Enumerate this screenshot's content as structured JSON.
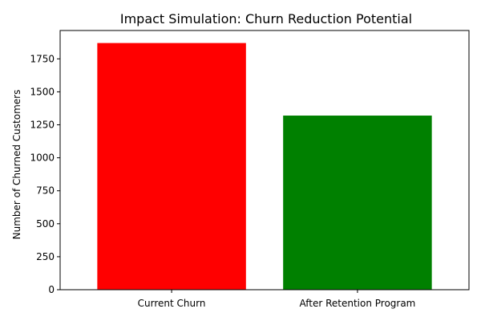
{
  "chart_data": {
    "type": "bar",
    "title": "Impact Simulation: Churn Reduction Potential",
    "xlabel": "",
    "ylabel": "Number of Churned Customers",
    "categories": [
      "Current Churn",
      "After Retention Program"
    ],
    "values": [
      1870,
      1320
    ],
    "colors": [
      "#ff0000",
      "#008000"
    ],
    "ylim": [
      0,
      1965
    ],
    "yticks": [
      0,
      250,
      500,
      750,
      1000,
      1250,
      1500,
      1750
    ],
    "grid": false,
    "legend": "none"
  }
}
